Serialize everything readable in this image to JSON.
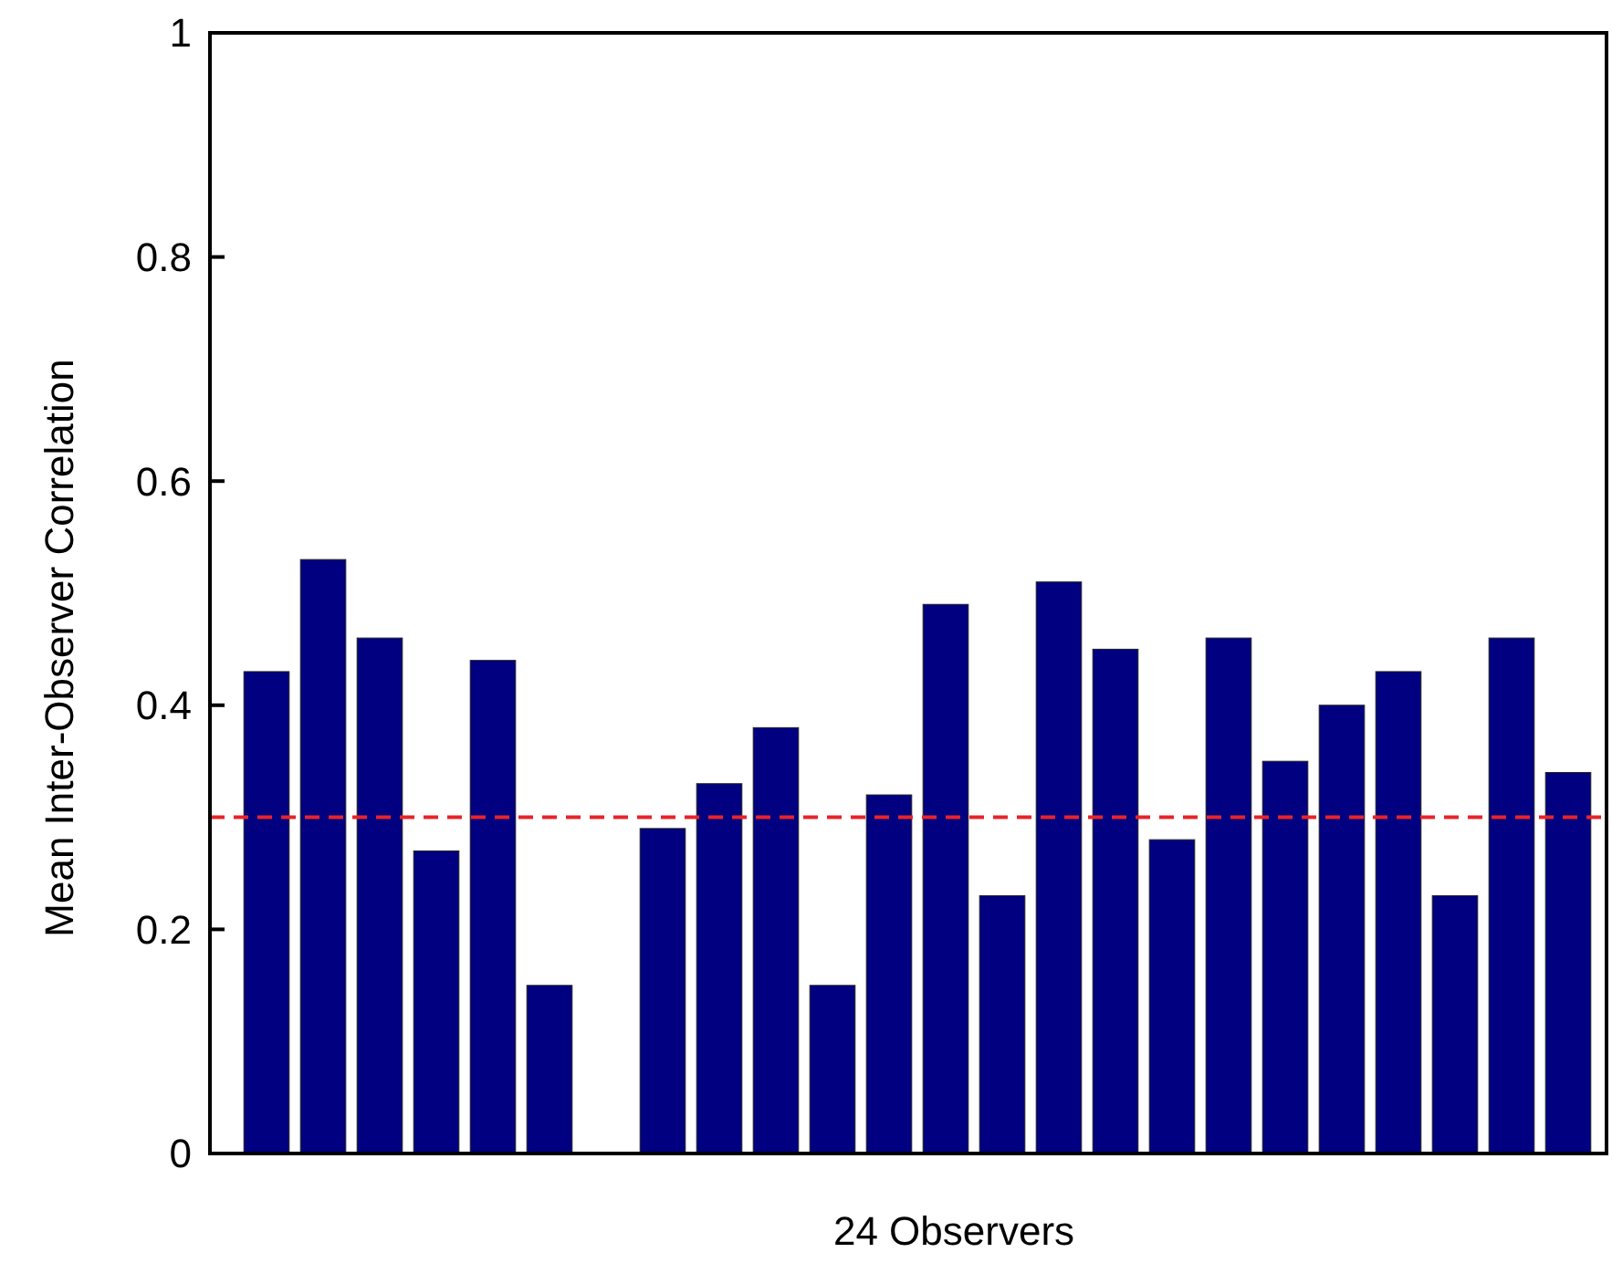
{
  "chart_data": {
    "type": "bar",
    "xlabel": "24 Observers",
    "ylabel": "Mean Inter-Observer Correlation",
    "categories": [
      null,
      null,
      null,
      null,
      null,
      null,
      null,
      null,
      null,
      null,
      null,
      null,
      null,
      null,
      null,
      null,
      null,
      null,
      null,
      null,
      null,
      null,
      null,
      null
    ],
    "values": [
      0.43,
      0.53,
      0.46,
      0.27,
      0.44,
      0.15,
      0,
      0.29,
      0.33,
      0.38,
      0.15,
      0.32,
      0.49,
      0.23,
      0.51,
      0.45,
      0.28,
      0.46,
      0.35,
      0.4,
      0.43,
      0.23,
      0.46,
      0.34
    ],
    "color": "#000080",
    "ylim": [
      0,
      1
    ],
    "yticks": [
      0,
      0.2,
      0.4,
      0.6,
      0.8,
      1
    ],
    "grid": false,
    "ref_lines": [
      {
        "axis": "y",
        "value": 0.3,
        "color": "#e8232a",
        "line_style": "dashed"
      }
    ]
  }
}
